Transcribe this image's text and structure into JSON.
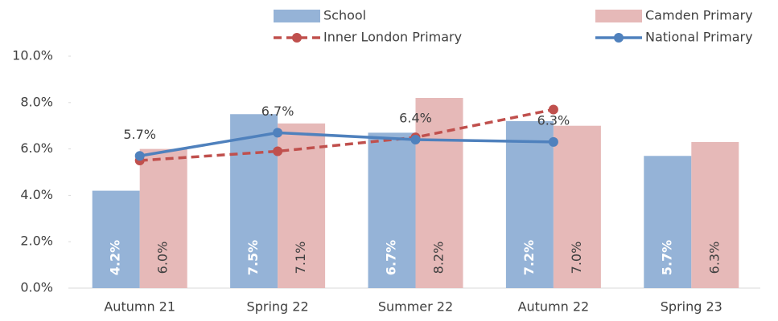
{
  "chart_data": {
    "type": "bar_line",
    "categories": [
      "Autumn 21",
      "Spring 22",
      "Summer 22",
      "Autumn 22",
      "Spring 23"
    ],
    "series": [
      {
        "name": "School",
        "kind": "bar",
        "color": "#95b3d7",
        "values": [
          4.2,
          7.5,
          6.7,
          7.2,
          5.7
        ],
        "value_labels": [
          "4.2%",
          "7.5%",
          "6.7%",
          "7.2%",
          "5.7%"
        ]
      },
      {
        "name": "Camden Primary",
        "kind": "bar",
        "color": "#e6b9b8",
        "values": [
          6.0,
          7.1,
          8.2,
          7.0,
          6.3
        ],
        "value_labels": [
          "6.0%",
          "7.1%",
          "8.2%",
          "7.0%",
          "6.3%"
        ]
      },
      {
        "name": "Inner London Primary",
        "kind": "line",
        "dashed": true,
        "color": "#c0504d",
        "values": [
          5.5,
          5.9,
          6.5,
          7.7,
          null
        ]
      },
      {
        "name": "National Primary",
        "kind": "line",
        "color": "#4f81bd",
        "values": [
          5.7,
          6.7,
          6.4,
          6.3,
          null
        ],
        "value_labels": [
          "5.7%",
          "6.7%",
          "6.4%",
          "6.3%",
          null
        ]
      }
    ],
    "ylim": [
      0,
      10
    ],
    "yticks": [
      {
        "value": 0,
        "label": "0.0%"
      },
      {
        "value": 2,
        "label": "2.0%"
      },
      {
        "value": 4,
        "label": "4.0%"
      },
      {
        "value": 6,
        "label": "6.0%"
      },
      {
        "value": 8,
        "label": "8.0%"
      },
      {
        "value": 10,
        "label": "10.0%"
      }
    ],
    "grid": false
  }
}
